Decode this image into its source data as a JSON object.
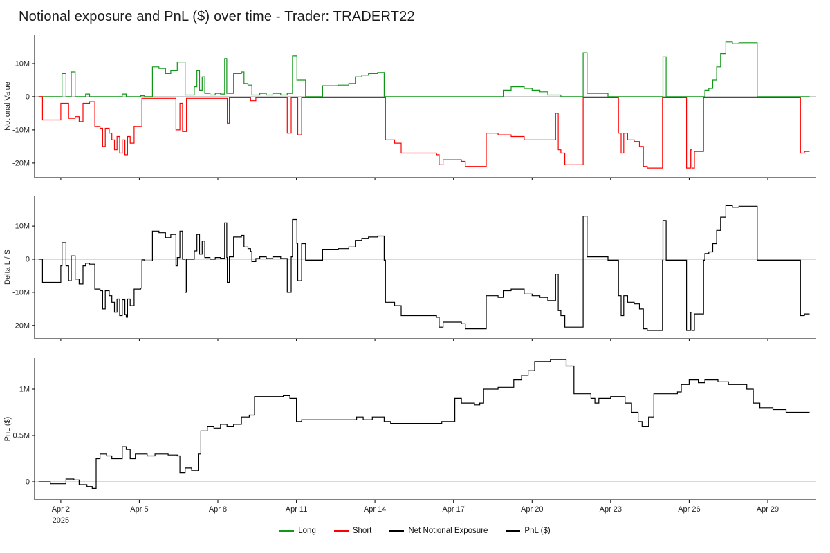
{
  "title": "Notional exposure and PnL ($) over time - Trader: TRADERT22",
  "style": {
    "background": "#ffffff",
    "long_color": "#109618",
    "short_color": "#ff0000",
    "net_color": "#000000",
    "pnl_color": "#000000",
    "axis_color": "#000000",
    "tick_label_color": "#262626",
    "zero_line_color": "#9a9a9a"
  },
  "legend": {
    "position": "bottom-center",
    "items": [
      {
        "label": "Long",
        "color": "#109618"
      },
      {
        "label": "Short",
        "color": "#ff0000"
      },
      {
        "label": "Net Notional Exposure",
        "color": "#000000"
      },
      {
        "label": "PnL ($)",
        "color": "#000000"
      }
    ]
  },
  "chart_data": {
    "type": "line",
    "step": true,
    "grid": false,
    "x_unit": "date, April 2025 (day of month)",
    "x_domain": [
      1.0,
      30.85
    ],
    "x_ticks": [
      {
        "x": 2,
        "label": "Apr 2",
        "sublabel": "2025"
      },
      {
        "x": 5,
        "label": "Apr 5"
      },
      {
        "x": 8,
        "label": "Apr 8"
      },
      {
        "x": 11,
        "label": "Apr 11"
      },
      {
        "x": 14,
        "label": "Apr 14"
      },
      {
        "x": 17,
        "label": "Apr 17"
      },
      {
        "x": 20,
        "label": "Apr 20"
      },
      {
        "x": 23,
        "label": "Apr 23"
      },
      {
        "x": 26,
        "label": "Apr 26"
      },
      {
        "x": 29,
        "label": "Apr 29"
      }
    ],
    "panels": [
      {
        "id": "notional-value",
        "ylabel": "Notional Value",
        "y_unit": "USD, millions",
        "ylim": [
          -24.4,
          18.75
        ],
        "yticks": [
          {
            "v": 10,
            "label": "10M"
          },
          {
            "v": 0,
            "label": "0"
          },
          {
            "v": -10,
            "label": "-10M"
          },
          {
            "v": -20,
            "label": "-20M"
          }
        ],
        "series": [
          {
            "name": "Long",
            "slug": "long",
            "color": "#109618",
            "points": [
              [
                1.15,
                0
              ],
              [
                2.05,
                7
              ],
              [
                2.2,
                0
              ],
              [
                2.4,
                7.5
              ],
              [
                2.55,
                0
              ],
              [
                2.95,
                0.8
              ],
              [
                3.1,
                0
              ],
              [
                4.35,
                0.8
              ],
              [
                4.5,
                0
              ],
              [
                5.05,
                0.3
              ],
              [
                5.2,
                0
              ],
              [
                5.5,
                9
              ],
              [
                5.75,
                8.5
              ],
              [
                6.0,
                7
              ],
              [
                6.2,
                8
              ],
              [
                6.45,
                10.5
              ],
              [
                6.75,
                0.5
              ],
              [
                7.1,
                3
              ],
              [
                7.2,
                8
              ],
              [
                7.3,
                2
              ],
              [
                7.4,
                6
              ],
              [
                7.5,
                1
              ],
              [
                7.7,
                0.5
              ],
              [
                7.9,
                1
              ],
              [
                8.1,
                0.8
              ],
              [
                8.26,
                11.5
              ],
              [
                8.34,
                1
              ],
              [
                8.6,
                7
              ],
              [
                8.9,
                7.5
              ],
              [
                9.0,
                4
              ],
              [
                9.15,
                3.5
              ],
              [
                9.3,
                0.5
              ],
              [
                9.6,
                1
              ],
              [
                9.85,
                0.5
              ],
              [
                10.1,
                1
              ],
              [
                10.4,
                0.5
              ],
              [
                10.65,
                1
              ],
              [
                10.85,
                12.3
              ],
              [
                11.02,
                5
              ],
              [
                11.35,
                0
              ],
              [
                12.0,
                3.3
              ],
              [
                12.6,
                3.5
              ],
              [
                13.0,
                4
              ],
              [
                13.25,
                6
              ],
              [
                13.5,
                6.5
              ],
              [
                13.75,
                7
              ],
              [
                14.1,
                7.3
              ],
              [
                14.35,
                0
              ],
              [
                18.9,
                2
              ],
              [
                19.2,
                3
              ],
              [
                19.7,
                2.5
              ],
              [
                20.0,
                2
              ],
              [
                20.3,
                1.5
              ],
              [
                20.6,
                0.5
              ],
              [
                21.1,
                0
              ],
              [
                21.95,
                13.3
              ],
              [
                22.1,
                1
              ],
              [
                22.9,
                0
              ],
              [
                25.0,
                12
              ],
              [
                25.12,
                0
              ],
              [
                26.6,
                2
              ],
              [
                26.75,
                2.5
              ],
              [
                26.9,
                5
              ],
              [
                27.05,
                9
              ],
              [
                27.2,
                13
              ],
              [
                27.4,
                16.5
              ],
              [
                27.65,
                16
              ],
              [
                27.9,
                16.3
              ],
              [
                28.6,
                0
              ],
              [
                30.6,
                0
              ]
            ]
          },
          {
            "name": "Short",
            "slug": "short",
            "color": "#ff0000",
            "points": [
              [
                1.15,
                0
              ],
              [
                1.3,
                -7
              ],
              [
                2.0,
                -2
              ],
              [
                2.3,
                -6.5
              ],
              [
                2.55,
                -6
              ],
              [
                2.7,
                -7.5
              ],
              [
                2.85,
                -2
              ],
              [
                3.1,
                -1.5
              ],
              [
                3.3,
                -9
              ],
              [
                3.5,
                -9.5
              ],
              [
                3.6,
                -15
              ],
              [
                3.7,
                -9.5
              ],
              [
                3.85,
                -11
              ],
              [
                3.95,
                -13
              ],
              [
                4.05,
                -16
              ],
              [
                4.15,
                -12
              ],
              [
                4.25,
                -17
              ],
              [
                4.35,
                -13
              ],
              [
                4.45,
                -17.5
              ],
              [
                4.55,
                -12
              ],
              [
                4.65,
                -14
              ],
              [
                4.8,
                -9
              ],
              [
                5.1,
                -0.5
              ],
              [
                6.4,
                -10
              ],
              [
                6.55,
                -2
              ],
              [
                6.65,
                -10.5
              ],
              [
                6.8,
                -0.5
              ],
              [
                8.36,
                -8
              ],
              [
                8.44,
                -0.3
              ],
              [
                9.25,
                -1.2
              ],
              [
                9.45,
                -0.3
              ],
              [
                10.65,
                -11
              ],
              [
                10.8,
                -0.3
              ],
              [
                11.05,
                -11.5
              ],
              [
                11.2,
                -0.3
              ],
              [
                14.4,
                -13
              ],
              [
                14.75,
                -14
              ],
              [
                15.0,
                -17
              ],
              [
                16.35,
                -17.5
              ],
              [
                16.45,
                -20.5
              ],
              [
                16.6,
                -19
              ],
              [
                17.3,
                -19.5
              ],
              [
                17.45,
                -21
              ],
              [
                18.25,
                -11
              ],
              [
                18.7,
                -11.5
              ],
              [
                19.2,
                -12
              ],
              [
                19.7,
                -13
              ],
              [
                20.9,
                -5
              ],
              [
                21.0,
                -16
              ],
              [
                21.1,
                -17
              ],
              [
                21.25,
                -20.5
              ],
              [
                21.95,
                -0.3
              ],
              [
                23.3,
                -11
              ],
              [
                23.4,
                -17
              ],
              [
                23.5,
                -11
              ],
              [
                23.65,
                -13
              ],
              [
                23.9,
                -13.5
              ],
              [
                24.1,
                -15
              ],
              [
                24.25,
                -21
              ],
              [
                24.4,
                -21.5
              ],
              [
                24.98,
                -0.3
              ],
              [
                25.9,
                -21.5
              ],
              [
                26.05,
                -16
              ],
              [
                26.1,
                -21.5
              ],
              [
                26.2,
                -16.5
              ],
              [
                26.55,
                -0.3
              ],
              [
                30.25,
                -17
              ],
              [
                30.4,
                -16.5
              ],
              [
                30.6,
                -16.5
              ]
            ]
          }
        ]
      },
      {
        "id": "delta-long-short",
        "ylabel": "Delta L / S",
        "y_unit": "USD, millions",
        "ylim": [
          -24.0,
          19.2
        ],
        "yticks": [
          {
            "v": 10,
            "label": "10M"
          },
          {
            "v": 0,
            "label": "0"
          },
          {
            "v": -10,
            "label": "-10M"
          },
          {
            "v": -20,
            "label": "-20M"
          }
        ],
        "series": [
          {
            "name": "Net Notional Exposure",
            "slug": "net-notional-exposure",
            "color": "#000000",
            "derive": "sum",
            "source_panel": 0
          }
        ]
      },
      {
        "id": "pnl",
        "ylabel": "PnL ($)",
        "y_unit": "USD, millions",
        "ylim": [
          -0.194,
          1.336
        ],
        "yticks": [
          {
            "v": 1,
            "label": "1M"
          },
          {
            "v": 0.5,
            "label": "0.5M"
          },
          {
            "v": 0,
            "label": "0"
          }
        ],
        "series": [
          {
            "name": "PnL ($)",
            "slug": "pnl",
            "color": "#000000",
            "points": [
              [
                1.15,
                0
              ],
              [
                1.6,
                -0.02
              ],
              [
                2.2,
                0.03
              ],
              [
                2.5,
                0.02
              ],
              [
                2.7,
                -0.03
              ],
              [
                3.0,
                -0.05
              ],
              [
                3.2,
                -0.07
              ],
              [
                3.35,
                0.25
              ],
              [
                3.5,
                0.3
              ],
              [
                3.75,
                0.28
              ],
              [
                3.95,
                0.25
              ],
              [
                4.35,
                0.38
              ],
              [
                4.5,
                0.35
              ],
              [
                4.65,
                0.25
              ],
              [
                4.85,
                0.3
              ],
              [
                5.3,
                0.28
              ],
              [
                5.6,
                0.3
              ],
              [
                6.1,
                0.29
              ],
              [
                6.45,
                0.28
              ],
              [
                6.55,
                0.1
              ],
              [
                6.75,
                0.15
              ],
              [
                7.0,
                0.12
              ],
              [
                7.25,
                0.3
              ],
              [
                7.35,
                0.55
              ],
              [
                7.6,
                0.6
              ],
              [
                7.85,
                0.58
              ],
              [
                8.1,
                0.62
              ],
              [
                8.35,
                0.6
              ],
              [
                8.6,
                0.62
              ],
              [
                8.9,
                0.7
              ],
              [
                9.2,
                0.72
              ],
              [
                9.4,
                0.92
              ],
              [
                10.5,
                0.93
              ],
              [
                10.75,
                0.9
              ],
              [
                11.0,
                0.65
              ],
              [
                11.2,
                0.67
              ],
              [
                13.3,
                0.7
              ],
              [
                13.55,
                0.67
              ],
              [
                13.9,
                0.7
              ],
              [
                14.35,
                0.65
              ],
              [
                14.6,
                0.63
              ],
              [
                16.55,
                0.65
              ],
              [
                17.05,
                0.9
              ],
              [
                17.3,
                0.85
              ],
              [
                17.8,
                0.83
              ],
              [
                18.0,
                0.85
              ],
              [
                18.15,
                1.0
              ],
              [
                18.7,
                1.02
              ],
              [
                19.3,
                1.1
              ],
              [
                19.6,
                1.15
              ],
              [
                19.85,
                1.2
              ],
              [
                20.1,
                1.3
              ],
              [
                20.7,
                1.32
              ],
              [
                21.3,
                1.25
              ],
              [
                21.6,
                0.95
              ],
              [
                22.25,
                0.9
              ],
              [
                22.4,
                0.85
              ],
              [
                22.55,
                0.9
              ],
              [
                23.0,
                0.92
              ],
              [
                23.55,
                0.85
              ],
              [
                23.8,
                0.75
              ],
              [
                24.05,
                0.65
              ],
              [
                24.2,
                0.6
              ],
              [
                24.45,
                0.7
              ],
              [
                24.65,
                0.95
              ],
              [
                25.55,
                0.97
              ],
              [
                25.7,
                1.05
              ],
              [
                26.0,
                1.1
              ],
              [
                26.35,
                1.07
              ],
              [
                26.6,
                1.1
              ],
              [
                27.1,
                1.08
              ],
              [
                27.5,
                1.05
              ],
              [
                28.2,
                1.0
              ],
              [
                28.45,
                0.85
              ],
              [
                28.7,
                0.8
              ],
              [
                29.2,
                0.78
              ],
              [
                29.7,
                0.75
              ],
              [
                30.6,
                0.75
              ]
            ]
          }
        ]
      }
    ]
  }
}
